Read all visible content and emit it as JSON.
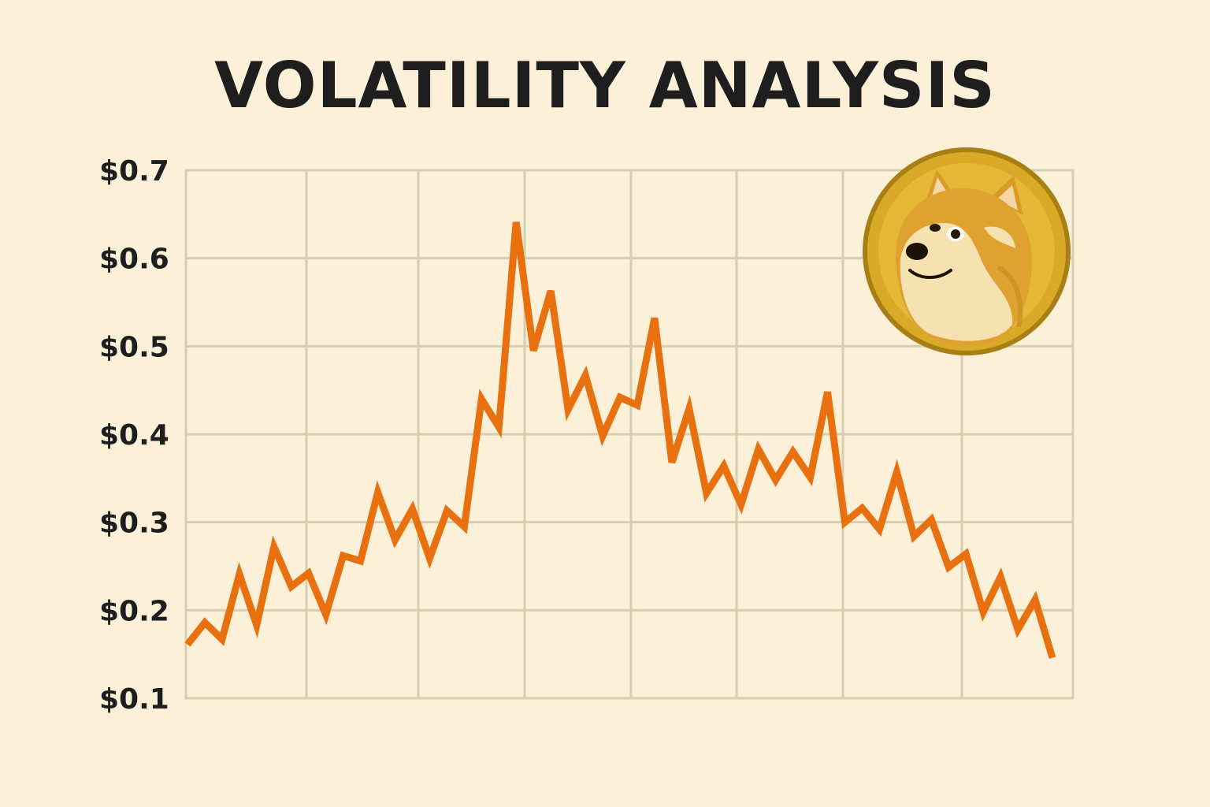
{
  "chart_data": {
    "type": "line",
    "title": "VOLATILITY ANALYSIS",
    "xlabel": "",
    "ylabel": "",
    "ylim": [
      0.1,
      0.7
    ],
    "yticks": [
      0.7,
      0.6,
      0.5,
      0.4,
      0.3,
      0.2,
      0.1
    ],
    "ytick_labels": [
      "$0.7",
      "$0.6",
      "$0.5",
      "$0.4",
      "$0.3",
      "$0.2",
      "$0.1"
    ],
    "grid": true,
    "series": [
      {
        "color": "#e8700f",
        "values": [
          0.161,
          0.186,
          0.167,
          0.241,
          0.183,
          0.272,
          0.227,
          0.242,
          0.195,
          0.262,
          0.256,
          0.334,
          0.28,
          0.315,
          0.259,
          0.313,
          0.295,
          0.44,
          0.408,
          0.641,
          0.495,
          0.563,
          0.428,
          0.467,
          0.398,
          0.442,
          0.433,
          0.532,
          0.368,
          0.429,
          0.333,
          0.364,
          0.32,
          0.383,
          0.348,
          0.38,
          0.351,
          0.448,
          0.3,
          0.316,
          0.292,
          0.357,
          0.284,
          0.303,
          0.249,
          0.264,
          0.198,
          0.238,
          0.178,
          0.212,
          0.146
        ]
      }
    ],
    "logo": {
      "icon": "doge-coin-icon",
      "colors": [
        "#d9a928",
        "#e9c23c",
        "#a87f14"
      ]
    }
  }
}
